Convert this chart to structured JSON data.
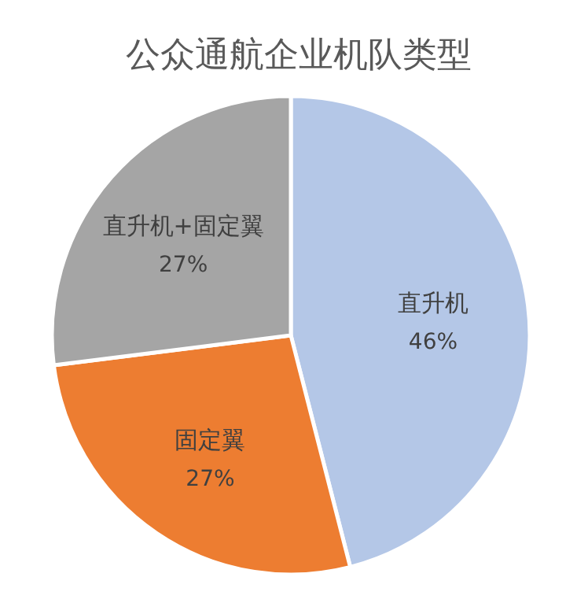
{
  "chart_data": {
    "type": "pie",
    "title": "公众通航企业机队类型",
    "categories": [
      "直升机",
      "固定翼",
      "直升机+固定翼"
    ],
    "values": [
      46,
      27,
      27
    ],
    "colors": [
      "#b4c7e7",
      "#ed7d31",
      "#a5a5a5"
    ],
    "value_labels": [
      "46%",
      "27%",
      "27%"
    ],
    "legend": false
  }
}
